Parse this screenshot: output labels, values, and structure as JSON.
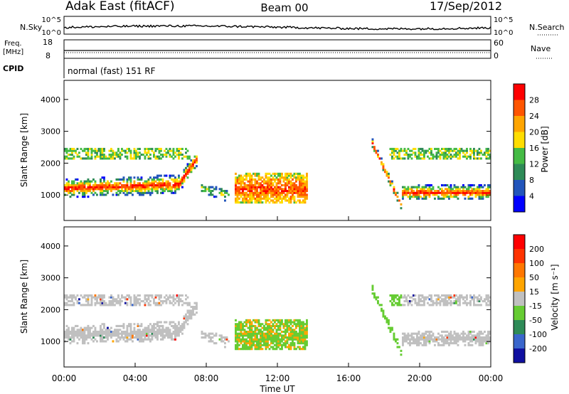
{
  "header": {
    "station": "Adak East (fitACF)",
    "beam": "Beam 00",
    "date": "17/Sep/2012"
  },
  "strips": {
    "nsky_label": "N.Sky",
    "nsky_top": "10^5",
    "nsky_bottom": "10^0",
    "nsearch_label": "N.Search",
    "freq_label_1": "Freq.",
    "freq_label_2": "[MHz]",
    "freq_top": "18",
    "freq_bottom": "8",
    "nave_label": "Nave",
    "nave_top": "60",
    "nave_bottom": "0",
    "cpid_label": "CPID",
    "cpid_value": "normal (fast) 151 RF"
  },
  "chart_data": [
    {
      "type": "heatmap",
      "name": "Power",
      "ylabel": "Slant Range [km]",
      "yticks": [
        "1000",
        "2000",
        "3000",
        "4000"
      ],
      "ytick_values": [
        1000,
        2000,
        3000,
        4000
      ],
      "ylim": [
        200,
        4600
      ],
      "xlim": [
        0,
        24
      ],
      "xtick_values": [
        0,
        4,
        8,
        12,
        16,
        20,
        24
      ],
      "colorbar": {
        "label": "Power [dB]",
        "ticks": [
          "4",
          "8",
          "12",
          "16",
          "20",
          "24",
          "28"
        ],
        "colors": [
          "#0000ff",
          "#2255bb",
          "#2e8b57",
          "#44bb44",
          "#ffdd00",
          "#ffa500",
          "#ff5500",
          "#ff0000"
        ]
      }
    },
    {
      "type": "heatmap",
      "name": "Velocity",
      "ylabel": "Slant Range [km]",
      "yticks": [
        "1000",
        "2000",
        "3000",
        "4000"
      ],
      "ytick_values": [
        1000,
        2000,
        3000,
        4000
      ],
      "ylim": [
        200,
        4600
      ],
      "xlim": [
        0,
        24
      ],
      "xtick_values": [
        0,
        4,
        8,
        12,
        16,
        20,
        24
      ],
      "xticks": [
        "00:00",
        "04:00",
        "08:00",
        "12:00",
        "16:00",
        "20:00",
        "00:00"
      ],
      "xlabel": "Time UT",
      "colorbar": {
        "label": "Velocity [m s⁻¹]",
        "ticks": [
          "200",
          "100",
          "50",
          "15",
          "-15",
          "-50",
          "-100",
          "-200"
        ],
        "colors": [
          "#1010a0",
          "#3a66cc",
          "#2e8b57",
          "#66cc33",
          "#c0c0c0",
          "#ffa500",
          "#ff7700",
          "#ff3300",
          "#ff0000"
        ]
      }
    }
  ]
}
